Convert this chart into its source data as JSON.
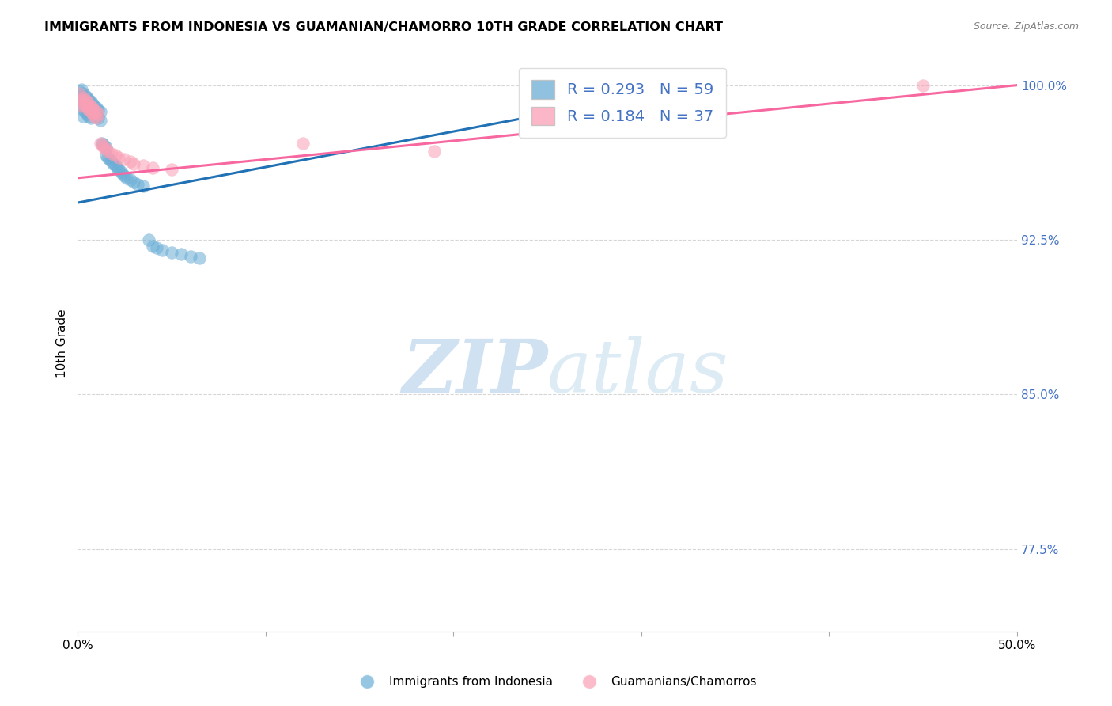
{
  "title": "IMMIGRANTS FROM INDONESIA VS GUAMANIAN/CHAMORRO 10TH GRADE CORRELATION CHART",
  "source": "Source: ZipAtlas.com",
  "ylabel": "10th Grade",
  "legend_label1": "Immigrants from Indonesia",
  "legend_label2": "Guamanians/Chamorros",
  "r1": 0.293,
  "n1": 59,
  "r2": 0.184,
  "n2": 37,
  "xmin": 0.0,
  "xmax": 0.5,
  "ymin": 0.735,
  "ymax": 1.015,
  "yticks": [
    0.775,
    0.85,
    0.925,
    1.0
  ],
  "ytick_labels": [
    "77.5%",
    "85.0%",
    "92.5%",
    "100.0%"
  ],
  "xticks": [
    0.0,
    0.1,
    0.2,
    0.3,
    0.4,
    0.5
  ],
  "xtick_labels": [
    "0.0%",
    "",
    "",
    "",
    "",
    "50.0%"
  ],
  "color_blue": "#6baed6",
  "color_pink": "#fa9fb5",
  "color_blue_line": "#2171b5",
  "color_pink_line": "#f768a1",
  "color_ytick_labels": "#4472c4",
  "watermark_color": "#d0e4f7",
  "blue_scatter_x": [
    0.001,
    0.001,
    0.002,
    0.002,
    0.002,
    0.003,
    0.003,
    0.003,
    0.003,
    0.004,
    0.004,
    0.004,
    0.005,
    0.005,
    0.005,
    0.006,
    0.006,
    0.006,
    0.007,
    0.007,
    0.007,
    0.008,
    0.008,
    0.009,
    0.009,
    0.01,
    0.01,
    0.011,
    0.011,
    0.012,
    0.012,
    0.013,
    0.014,
    0.015,
    0.015,
    0.016,
    0.017,
    0.018,
    0.019,
    0.02,
    0.021,
    0.022,
    0.023,
    0.024,
    0.025,
    0.026,
    0.028,
    0.03,
    0.032,
    0.035,
    0.038,
    0.04,
    0.042,
    0.045,
    0.05,
    0.055,
    0.06,
    0.065,
    0.33
  ],
  "blue_scatter_y": [
    0.997,
    0.994,
    0.998,
    0.993,
    0.99,
    0.996,
    0.992,
    0.988,
    0.985,
    0.995,
    0.991,
    0.987,
    0.994,
    0.99,
    0.986,
    0.993,
    0.989,
    0.985,
    0.992,
    0.988,
    0.984,
    0.991,
    0.987,
    0.99,
    0.986,
    0.989,
    0.985,
    0.988,
    0.984,
    0.987,
    0.983,
    0.972,
    0.971,
    0.97,
    0.966,
    0.965,
    0.964,
    0.963,
    0.962,
    0.961,
    0.96,
    0.959,
    0.958,
    0.957,
    0.956,
    0.955,
    0.954,
    0.953,
    0.952,
    0.951,
    0.925,
    0.922,
    0.921,
    0.92,
    0.919,
    0.918,
    0.917,
    0.916,
    0.997
  ],
  "pink_scatter_x": [
    0.001,
    0.002,
    0.002,
    0.003,
    0.003,
    0.004,
    0.004,
    0.005,
    0.005,
    0.006,
    0.006,
    0.007,
    0.007,
    0.008,
    0.008,
    0.009,
    0.009,
    0.01,
    0.01,
    0.011,
    0.012,
    0.013,
    0.014,
    0.015,
    0.016,
    0.018,
    0.02,
    0.022,
    0.025,
    0.028,
    0.03,
    0.035,
    0.04,
    0.05,
    0.12,
    0.19,
    0.45
  ],
  "pink_scatter_y": [
    0.996,
    0.993,
    0.99,
    0.994,
    0.991,
    0.993,
    0.99,
    0.992,
    0.989,
    0.991,
    0.988,
    0.99,
    0.987,
    0.989,
    0.986,
    0.988,
    0.985,
    0.987,
    0.984,
    0.986,
    0.972,
    0.971,
    0.97,
    0.969,
    0.968,
    0.967,
    0.966,
    0.965,
    0.964,
    0.963,
    0.962,
    0.961,
    0.96,
    0.959,
    0.972,
    0.968,
    1.0
  ],
  "blue_line_x0": 0.0,
  "blue_line_x1": 0.33,
  "blue_line_y0": 0.943,
  "blue_line_y1": 1.0,
  "pink_line_x0": 0.0,
  "pink_line_x1": 0.5,
  "pink_line_y0": 0.955,
  "pink_line_y1": 1.0
}
